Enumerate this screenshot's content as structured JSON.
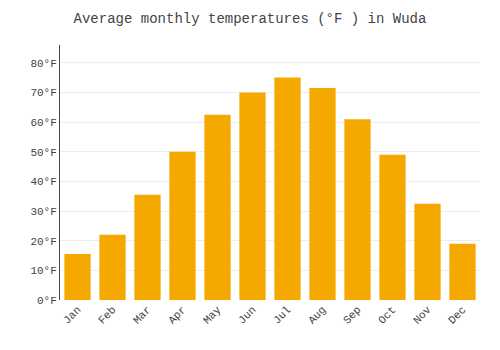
{
  "chart_data": {
    "type": "bar",
    "title": "Average monthly temperatures (°F ) in Wuda",
    "categories": [
      "Jan",
      "Feb",
      "Mar",
      "Apr",
      "May",
      "Jun",
      "Jul",
      "Aug",
      "Sep",
      "Oct",
      "Nov",
      "Dec"
    ],
    "values": [
      15.5,
      22,
      35.5,
      50,
      62.5,
      70,
      75,
      71.5,
      61,
      49,
      32.5,
      19
    ],
    "color": "#F5A800",
    "ylim": [
      0,
      86
    ],
    "yticks": [
      {
        "value": 0,
        "label": "0°F"
      },
      {
        "value": 10,
        "label": "10°F"
      },
      {
        "value": 20,
        "label": "20°F"
      },
      {
        "value": 30,
        "label": "30°F"
      },
      {
        "value": 40,
        "label": "40°F"
      },
      {
        "value": 50,
        "label": "50°F"
      },
      {
        "value": 60,
        "label": "60°F"
      },
      {
        "value": 70,
        "label": "70°F"
      },
      {
        "value": 80,
        "label": "80°F"
      }
    ],
    "grid": true
  }
}
